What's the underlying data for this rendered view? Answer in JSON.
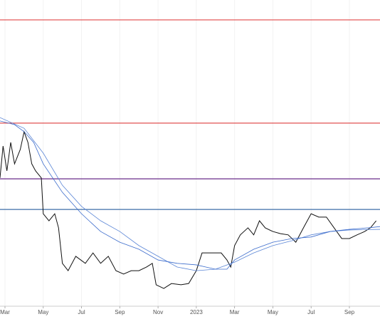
{
  "chart_data": {
    "type": "line",
    "xlim": [
      0.74,
      20.6
    ],
    "ylim": [
      0,
      100
    ],
    "grid": true,
    "xticks": [
      {
        "value": 1,
        "label": "Mar"
      },
      {
        "value": 3,
        "label": "May"
      },
      {
        "value": 5,
        "label": "Jul"
      },
      {
        "value": 7,
        "label": "Sep"
      },
      {
        "value": 9,
        "label": "Nov"
      },
      {
        "value": 11,
        "label": "2023"
      },
      {
        "value": 13,
        "label": "Mar"
      },
      {
        "value": 15,
        "label": "May"
      },
      {
        "value": 17,
        "label": "Jul"
      },
      {
        "value": 19,
        "label": "Sep"
      }
    ],
    "hlines": [
      {
        "value": 93.5,
        "color": "#e04848"
      },
      {
        "value": 59.8,
        "color": "#e05050"
      },
      {
        "value": 41.6,
        "color": "#6a2c8a"
      },
      {
        "value": 31.6,
        "color": "#3f6fa8"
      }
    ],
    "series": [
      {
        "color": "#111111",
        "width": 1,
        "x": [
          0.74,
          0.9,
          1.1,
          1.3,
          1.5,
          1.8,
          2.0,
          2.2,
          2.4,
          2.6,
          2.9,
          3.0,
          3.3,
          3.6,
          3.8,
          4.0,
          4.3,
          4.7,
          5.2,
          5.6,
          6.0,
          6.4,
          6.8,
          7.2,
          7.6,
          8.0,
          8.4,
          8.7,
          8.9,
          9.3,
          9.7,
          10.2,
          10.6,
          11.0,
          11.3,
          11.8,
          12.3,
          12.6,
          12.8,
          13.0,
          13.3,
          13.7,
          14.0,
          14.3,
          14.6,
          15.0,
          15.4,
          15.8,
          16.2,
          16.6,
          17.0,
          17.4,
          17.8,
          18.2,
          18.6,
          19.0,
          19.4,
          19.8,
          20.1,
          20.4
        ],
        "values": [
          41.9,
          52.3,
          44.2,
          53.5,
          46.5,
          51.2,
          57.0,
          53.5,
          46.5,
          44.2,
          41.9,
          30.2,
          27.9,
          30.2,
          25.6,
          14.0,
          11.6,
          16.3,
          14.0,
          17.4,
          14.0,
          16.3,
          11.6,
          10.5,
          11.6,
          11.6,
          12.8,
          14.0,
          7.0,
          5.8,
          7.4,
          7.0,
          7.4,
          11.6,
          17.4,
          17.4,
          17.4,
          15.1,
          12.8,
          19.8,
          23.3,
          25.6,
          23.3,
          27.9,
          25.6,
          24.4,
          23.7,
          23.3,
          20.9,
          25.6,
          30.2,
          29.1,
          29.1,
          25.6,
          22.1,
          22.1,
          23.3,
          24.4,
          25.6,
          27.9
        ]
      },
      {
        "color": "#5b86d6",
        "width": 0.8,
        "x": [
          0.74,
          2,
          3,
          4,
          5,
          6,
          7,
          8,
          9,
          10,
          11,
          12,
          13,
          14,
          15,
          16,
          17,
          18,
          19,
          20.6
        ],
        "values": [
          61.6,
          58.1,
          50.0,
          39.5,
          32.6,
          27.9,
          24.4,
          19.8,
          16.3,
          12.8,
          11.6,
          12.1,
          14.4,
          17.4,
          19.8,
          21.4,
          23.3,
          24.4,
          24.9,
          25.1
        ]
      },
      {
        "color": "#3c6ccc",
        "width": 0.8,
        "x": [
          0.74,
          1.5,
          2,
          2.5,
          3,
          4,
          5,
          6,
          7,
          8,
          9,
          10,
          11,
          11.5,
          12,
          12.6,
          13,
          14,
          15,
          16,
          17,
          18,
          19,
          20,
          20.6
        ],
        "values": [
          60.5,
          59.3,
          57.0,
          53.5,
          46.5,
          37.2,
          30.2,
          24.4,
          20.9,
          18.6,
          15.1,
          14.0,
          13.5,
          12.8,
          12.1,
          12.1,
          15.1,
          18.6,
          20.9,
          22.1,
          22.6,
          24.4,
          25.1,
          25.6,
          26.0
        ]
      }
    ]
  }
}
